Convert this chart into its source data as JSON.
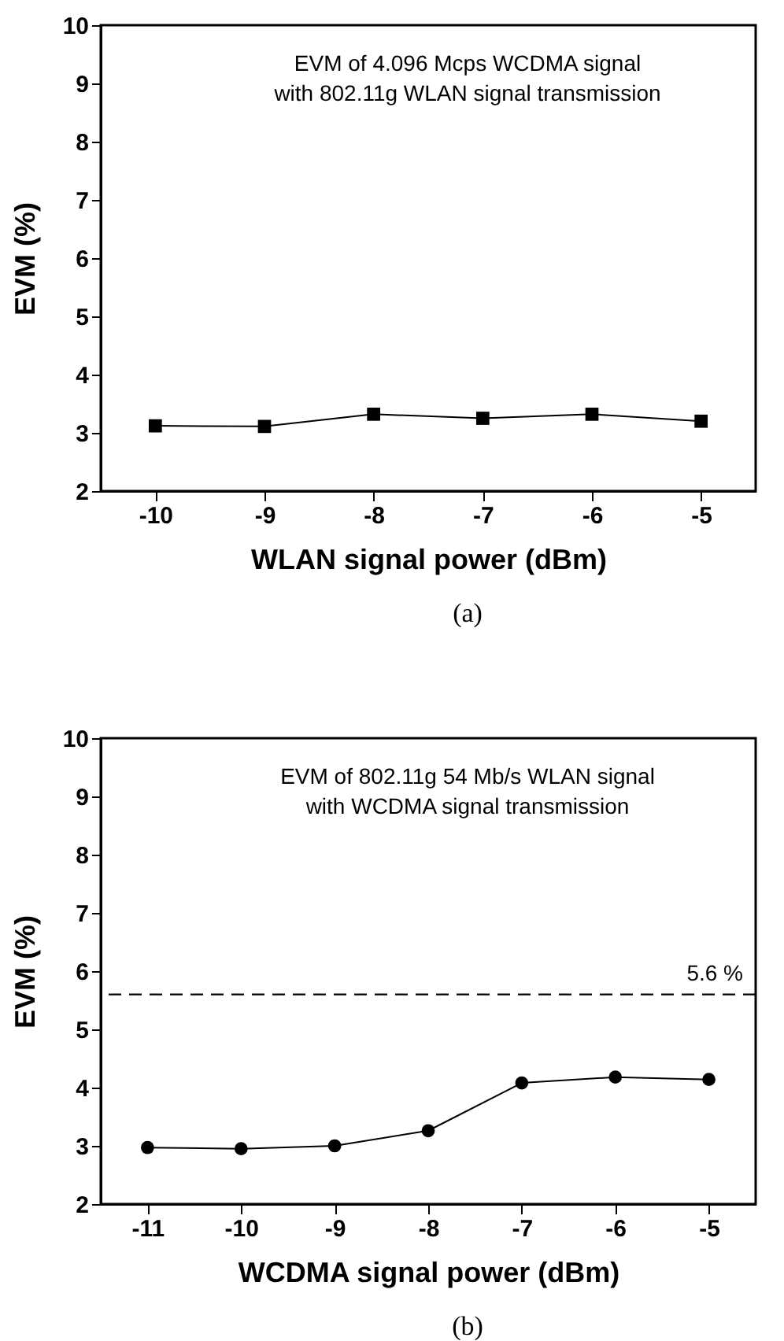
{
  "chart_data": [
    {
      "type": "line",
      "x": [
        -10,
        -9,
        -8,
        -7,
        -6,
        -5
      ],
      "xlabel": "WLAN signal power (dBm)",
      "ylabel": "EVM (%)",
      "xlim": [
        -10.5,
        -4.5
      ],
      "xticks": [
        -10,
        -9,
        -8,
        -7,
        -6,
        -5
      ],
      "ylim": [
        2,
        10
      ],
      "yticks": [
        2,
        3,
        4,
        5,
        6,
        7,
        8,
        9,
        10
      ],
      "marker": "square",
      "grid": false,
      "legend": false,
      "series": [
        {
          "color": "#000000",
          "values": [
            3.12,
            3.11,
            3.32,
            3.25,
            3.32,
            3.2
          ]
        }
      ],
      "annotations": [
        "EVM of 4.096 Mcps WCDMA signal\nwith 802.11g WLAN signal transmission",
        "(a)"
      ]
    },
    {
      "type": "line",
      "x": [
        -11,
        -10,
        -9,
        -8,
        -7,
        -6,
        -5
      ],
      "xlabel": "WCDMA signal power (dBm)",
      "ylabel": "EVM (%)",
      "xlim": [
        -11.5,
        -4.5
      ],
      "xticks": [
        -11,
        -10,
        -9,
        -8,
        -7,
        -6,
        -5
      ],
      "ylim": [
        2,
        10
      ],
      "yticks": [
        2,
        3,
        4,
        5,
        6,
        7,
        8,
        9,
        10
      ],
      "marker": "circle",
      "grid": false,
      "legend": false,
      "series": [
        {
          "color": "#000000",
          "values": [
            2.97,
            2.95,
            3.0,
            3.26,
            4.08,
            4.18,
            4.14
          ]
        }
      ],
      "ref_lines": [
        {
          "axis": "y",
          "value": 5.6,
          "label": "5.6 %",
          "line_style": "dashed",
          "color": "#000000"
        }
      ],
      "annotations": [
        "EVM of 802.11g 54 Mb/s WLAN signal\nwith WCDMA signal transmission",
        "(b)"
      ]
    }
  ]
}
